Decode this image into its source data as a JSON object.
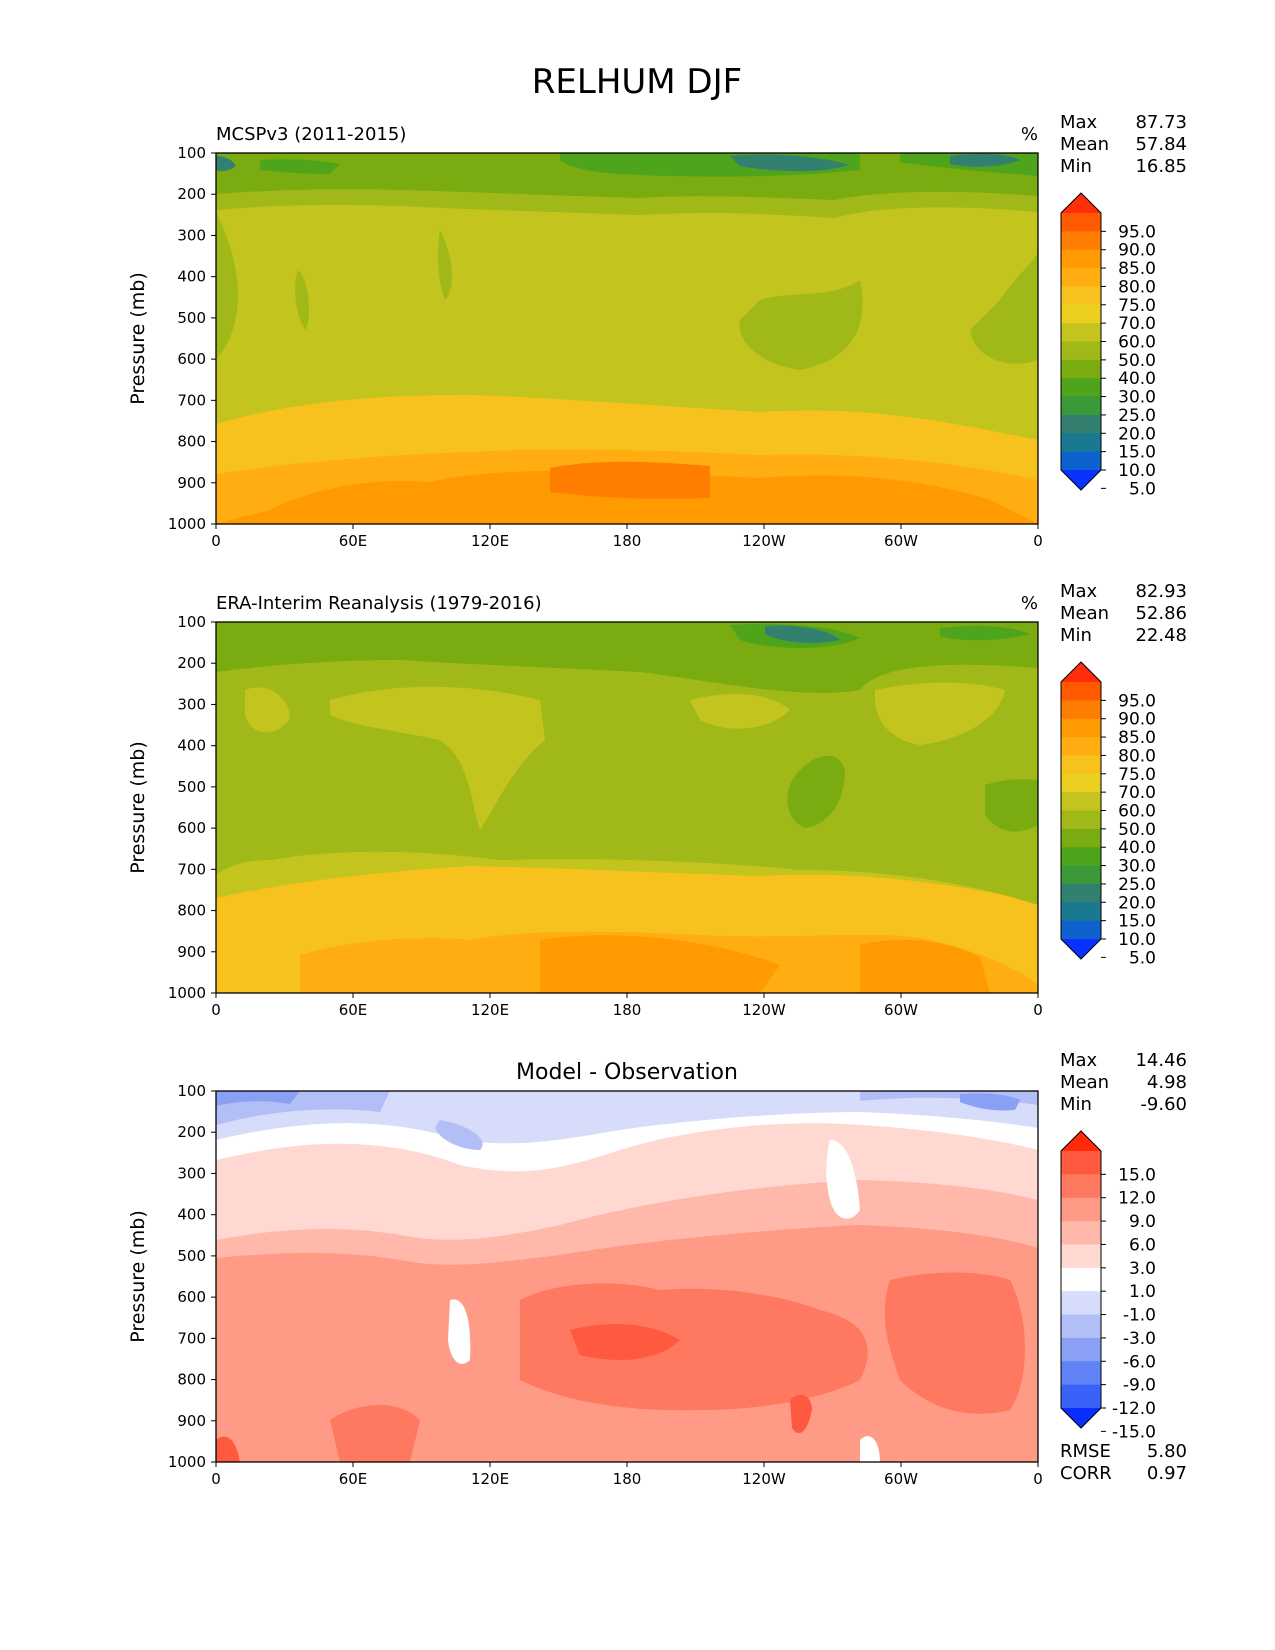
{
  "figure": {
    "title": "RELHUM DJF",
    "background": "#ffffff"
  },
  "chart_data": [
    {
      "type": "heatmap",
      "title": "MCSPv3 (2011-2015)",
      "units": "%",
      "ylabel": "Pressure (mb)",
      "x_ticks": [
        "0",
        "60E",
        "120E",
        "180",
        "120W",
        "60W",
        "0"
      ],
      "y_ticks": [
        "100",
        "200",
        "300",
        "400",
        "500",
        "600",
        "700",
        "800",
        "900",
        "1000"
      ],
      "ylim": [
        1000,
        100
      ],
      "stats": [
        {
          "label": "Max",
          "value": "87.73"
        },
        {
          "label": "Mean",
          "value": "57.84"
        },
        {
          "label": "Min",
          "value": "16.85"
        }
      ],
      "colorbar": {
        "levels": [
          "95.0",
          "90.0",
          "85.0",
          "80.0",
          "75.0",
          "70.0",
          "60.0",
          "50.0",
          "40.0",
          "30.0",
          "25.0",
          "20.0",
          "15.0",
          "10.0",
          "5.0"
        ],
        "colors": [
          "#ff2d0a",
          "#ff5a00",
          "#ff7d00",
          "#ff9a00",
          "#ffad10",
          "#f8c21e",
          "#ecd020",
          "#c4c41e",
          "#a0b818",
          "#7aac12",
          "#4ea41a",
          "#3a9a3a",
          "#348070",
          "#1a7890",
          "#0d62d0",
          "#0a32ff"
        ]
      }
    },
    {
      "type": "heatmap",
      "title": "ERA-Interim Reanalysis (1979-2016)",
      "units": "%",
      "ylabel": "Pressure (mb)",
      "x_ticks": [
        "0",
        "60E",
        "120E",
        "180",
        "120W",
        "60W",
        "0"
      ],
      "y_ticks": [
        "100",
        "200",
        "300",
        "400",
        "500",
        "600",
        "700",
        "800",
        "900",
        "1000"
      ],
      "ylim": [
        1000,
        100
      ],
      "stats": [
        {
          "label": "Max",
          "value": "82.93"
        },
        {
          "label": "Mean",
          "value": "52.86"
        },
        {
          "label": "Min",
          "value": "22.48"
        }
      ],
      "colorbar": {
        "levels": [
          "95.0",
          "90.0",
          "85.0",
          "80.0",
          "75.0",
          "70.0",
          "60.0",
          "50.0",
          "40.0",
          "30.0",
          "25.0",
          "20.0",
          "15.0",
          "10.0",
          "5.0"
        ],
        "colors": [
          "#ff2d0a",
          "#ff5a00",
          "#ff7d00",
          "#ff9a00",
          "#ffad10",
          "#f8c21e",
          "#ecd020",
          "#c4c41e",
          "#a0b818",
          "#7aac12",
          "#4ea41a",
          "#3a9a3a",
          "#348070",
          "#1a7890",
          "#0d62d0",
          "#0a32ff"
        ]
      }
    },
    {
      "type": "heatmap",
      "title": "Model - Observation",
      "ylabel": "Pressure (mb)",
      "x_ticks": [
        "0",
        "60E",
        "120E",
        "180",
        "120W",
        "60W",
        "0"
      ],
      "y_ticks": [
        "100",
        "200",
        "300",
        "400",
        "500",
        "600",
        "700",
        "800",
        "900",
        "1000"
      ],
      "ylim": [
        1000,
        100
      ],
      "stats": [
        {
          "label": "Max",
          "value": "14.46"
        },
        {
          "label": "Mean",
          "value": "4.98"
        },
        {
          "label": "Min",
          "value": "-9.60"
        }
      ],
      "bottom_stats": [
        {
          "label": "RMSE",
          "value": "5.80"
        },
        {
          "label": "CORR",
          "value": "0.97"
        }
      ],
      "colorbar": {
        "levels": [
          "15.0",
          "12.0",
          "9.0",
          "6.0",
          "3.0",
          "1.0",
          "-1.0",
          "-3.0",
          "-6.0",
          "-9.0",
          "-12.0",
          "-15.0"
        ],
        "colors": [
          "#ff2a0a",
          "#ff5a40",
          "#ff7860",
          "#ff9a86",
          "#ffb8aa",
          "#ffd8d2",
          "#ffffff",
          "#d6dcfa",
          "#b2bef6",
          "#8aa0f4",
          "#5f82f6",
          "#3a62f8",
          "#0a2cff"
        ]
      }
    }
  ]
}
